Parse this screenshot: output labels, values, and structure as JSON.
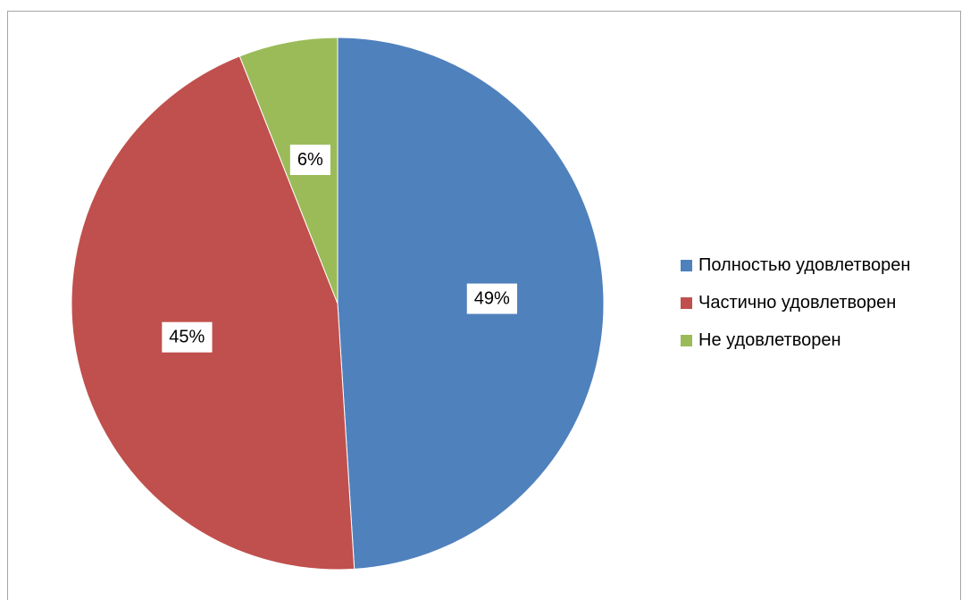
{
  "chart_data": {
    "type": "pie",
    "title": "",
    "slices": [
      {
        "label": "Полностью удовлетворен",
        "value": 49,
        "value_label": "49%",
        "color": "#4F81BD"
      },
      {
        "label": "Частично удовлетворен",
        "value": 45,
        "value_label": "45%",
        "color": "#C0504D"
      },
      {
        "label": "Не удовлетворен",
        "value": 6,
        "value_label": "6%",
        "color": "#9BBB59"
      }
    ],
    "start_angle_deg": 0,
    "direction": "clockwise",
    "legend_position": "right"
  }
}
